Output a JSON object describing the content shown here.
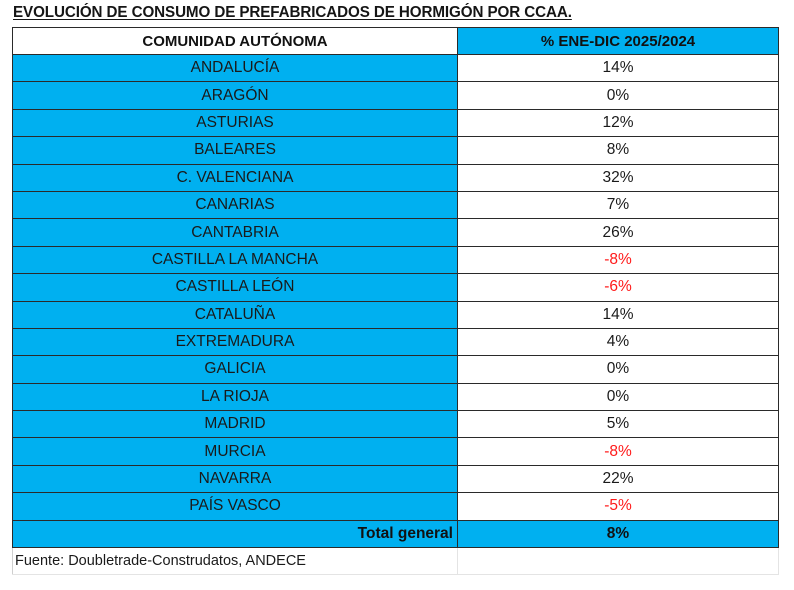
{
  "title": "EVOLUCIÓN DE CONSUMO DE PREFABRICADOS DE HORMIGÓN POR CCAA.",
  "table": {
    "headers": [
      "COMUNIDAD AUTÓNOMA",
      "% ENE-DIC 2025/2024"
    ],
    "rows": [
      {
        "region": "ANDALUCÍA",
        "value": "14%",
        "negative": false
      },
      {
        "region": "ARAGÓN",
        "value": "0%",
        "negative": false
      },
      {
        "region": "ASTURIAS",
        "value": "12%",
        "negative": false
      },
      {
        "region": "BALEARES",
        "value": "8%",
        "negative": false
      },
      {
        "region": "C. VALENCIANA",
        "value": "32%",
        "negative": false
      },
      {
        "region": "CANARIAS",
        "value": "7%",
        "negative": false
      },
      {
        "region": "CANTABRIA",
        "value": "26%",
        "negative": false
      },
      {
        "region": "CASTILLA LA MANCHA",
        "value": "-8%",
        "negative": true
      },
      {
        "region": "CASTILLA LEÓN",
        "value": "-6%",
        "negative": true
      },
      {
        "region": "CATALUÑA",
        "value": "14%",
        "negative": false
      },
      {
        "region": "EXTREMADURA",
        "value": "4%",
        "negative": false
      },
      {
        "region": "GALICIA",
        "value": "0%",
        "negative": false
      },
      {
        "region": "LA RIOJA",
        "value": "0%",
        "negative": false
      },
      {
        "region": "MADRID",
        "value": "5%",
        "negative": false
      },
      {
        "region": "MURCIA",
        "value": "-8%",
        "negative": true
      },
      {
        "region": "NAVARRA",
        "value": "22%",
        "negative": false
      },
      {
        "region": "PAÍS VASCO",
        "value": "-5%",
        "negative": true
      }
    ],
    "total": {
      "label": "Total general",
      "value": "8%"
    }
  },
  "source": "Fuente: Doubletrade-Construdatos, ANDECE",
  "colors": {
    "header_blue": "#00b0f0",
    "negative_red": "#ff1a1a",
    "text": "#1a1a1a"
  }
}
